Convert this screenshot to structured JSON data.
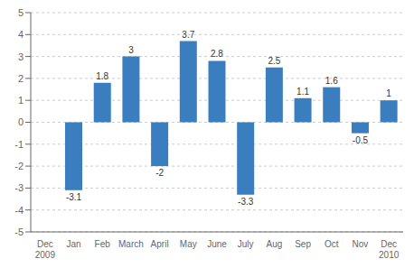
{
  "chart_data": {
    "type": "bar",
    "categories": [
      "Dec\n2009",
      "Jan",
      "Feb",
      "March",
      "April",
      "May",
      "June",
      "July",
      "Aug",
      "Sep",
      "Oct",
      "Nov",
      "Dec\n2010"
    ],
    "values": [
      0,
      -3.1,
      1.8,
      3,
      -2,
      3.7,
      2.8,
      -3.3,
      2.5,
      1.1,
      1.6,
      -0.5,
      1
    ],
    "color": "#3a7ebf",
    "ylim": [
      -5,
      5
    ],
    "yticks": [
      -5,
      -4,
      -3,
      -2,
      -1,
      0,
      1,
      2,
      3,
      4,
      5
    ],
    "grid": true,
    "data_labels": true
  }
}
